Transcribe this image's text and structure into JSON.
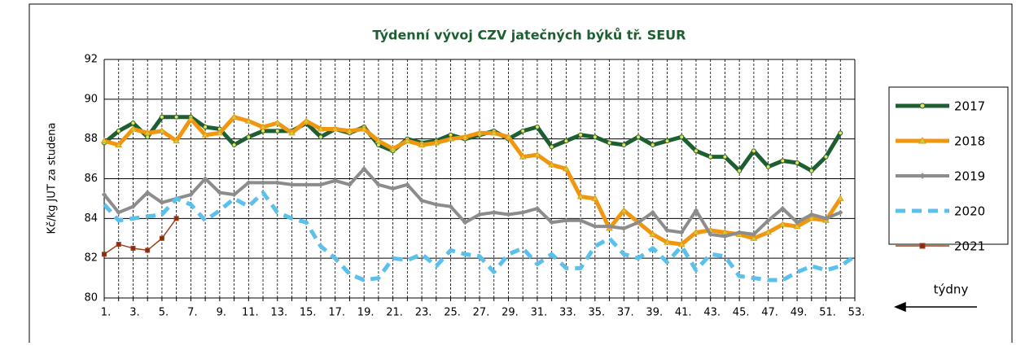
{
  "chart_data": {
    "type": "line",
    "title": "Týdenní vývoj CZV jatečných býků tř. SEUR",
    "y_label": "Kč/kg JUT za studena",
    "x_label": "týdny",
    "categories": [
      "1.",
      null,
      "3.",
      null,
      "5.",
      null,
      "7.",
      null,
      "9.",
      null,
      "11.",
      null,
      "13.",
      null,
      "15.",
      null,
      "17.",
      null,
      "19.",
      null,
      "21.",
      null,
      "23.",
      null,
      "25.",
      null,
      "27.",
      null,
      "29.",
      null,
      "31.",
      null,
      "33.",
      null,
      "35.",
      null,
      "37.",
      null,
      "39.",
      null,
      "41.",
      null,
      "43.",
      null,
      "45.",
      null,
      "47.",
      null,
      "49.",
      null,
      "51.",
      null,
      "53."
    ],
    "ylim": [
      80,
      92
    ],
    "yticks": [
      80,
      82,
      84,
      86,
      88,
      90,
      92
    ],
    "grid": true,
    "series": [
      {
        "name": "2017",
        "color": "#1e5f32",
        "marker": "circle",
        "marker_color": "#e8e060",
        "width": 5,
        "dashed": false,
        "values": [
          87.8,
          88.4,
          88.8,
          88.1,
          89.1,
          89.1,
          89.1,
          88.6,
          88.5,
          87.7,
          88.1,
          88.4,
          88.4,
          88.4,
          88.8,
          88.1,
          88.5,
          88.3,
          88.6,
          87.7,
          87.4,
          88.0,
          87.8,
          87.9,
          88.2,
          88.0,
          88.2,
          88.4,
          88.0,
          88.4,
          88.6,
          87.6,
          87.9,
          88.2,
          88.1,
          87.8,
          87.7,
          88.1,
          87.7,
          87.9,
          88.1,
          87.4,
          87.1,
          87.1,
          86.4,
          87.4,
          86.6,
          86.9,
          86.8,
          86.4,
          87.1,
          88.3,
          null
        ]
      },
      {
        "name": "2018",
        "color": "#f0960f",
        "marker": "triangle",
        "marker_color": "#c8d040",
        "width": 5,
        "dashed": false,
        "values": [
          87.9,
          87.7,
          88.5,
          88.3,
          88.4,
          87.9,
          89.0,
          88.2,
          88.3,
          89.1,
          88.9,
          88.6,
          88.8,
          88.3,
          88.9,
          88.5,
          88.5,
          88.4,
          88.5,
          87.9,
          87.5,
          87.9,
          87.7,
          87.8,
          88.0,
          88.1,
          88.3,
          88.3,
          88.1,
          87.1,
          87.2,
          86.7,
          86.5,
          85.1,
          85.0,
          83.5,
          84.4,
          83.8,
          83.2,
          82.8,
          82.7,
          83.3,
          83.4,
          83.3,
          83.2,
          83.0,
          83.3,
          83.7,
          83.6,
          84.0,
          83.9,
          85.0,
          null
        ]
      },
      {
        "name": "2019",
        "color": "#8c8c8c",
        "marker": "diamond",
        "marker_color": "#8c8c8c",
        "width": 4,
        "dashed": false,
        "values": [
          85.2,
          84.3,
          84.6,
          85.3,
          84.8,
          85.0,
          85.2,
          86.0,
          85.3,
          85.2,
          85.8,
          85.8,
          85.8,
          85.7,
          85.7,
          85.7,
          85.9,
          85.7,
          86.5,
          85.7,
          85.5,
          85.7,
          84.9,
          84.7,
          84.6,
          83.8,
          84.2,
          84.3,
          84.2,
          84.3,
          84.5,
          83.8,
          83.9,
          83.9,
          83.6,
          83.6,
          83.5,
          83.8,
          84.3,
          83.4,
          83.3,
          84.4,
          83.2,
          83.1,
          83.3,
          83.2,
          83.9,
          84.5,
          83.8,
          84.2,
          84.0,
          84.3,
          null
        ]
      },
      {
        "name": "2020",
        "color": "#5bc0eb",
        "marker": null,
        "marker_color": null,
        "width": 5,
        "dashed": true,
        "values": [
          84.7,
          83.9,
          84.0,
          84.1,
          84.2,
          85.0,
          84.7,
          83.9,
          84.4,
          85.0,
          84.6,
          85.3,
          84.3,
          84.0,
          83.8,
          82.6,
          82.0,
          81.2,
          80.9,
          81.0,
          82.0,
          81.9,
          82.2,
          81.6,
          82.4,
          82.2,
          82.1,
          81.3,
          82.2,
          82.5,
          81.7,
          82.2,
          81.5,
          81.5,
          82.6,
          83.0,
          82.2,
          82.0,
          82.5,
          81.8,
          82.6,
          81.4,
          82.2,
          82.1,
          81.1,
          81.0,
          80.9,
          80.9,
          81.3,
          81.6,
          81.4,
          81.6,
          82.1
        ]
      },
      {
        "name": "2021",
        "color": "#a0401a",
        "marker": "square",
        "marker_color": "#8b2a10",
        "width": 1.5,
        "dashed": false,
        "values": [
          82.2,
          82.7,
          82.5,
          82.4,
          83.0,
          84.0,
          null,
          null,
          null,
          null,
          null,
          null,
          null,
          null,
          null,
          null,
          null,
          null,
          null,
          null,
          null,
          null,
          null,
          null,
          null,
          null,
          null,
          null,
          null,
          null,
          null,
          null,
          null,
          null,
          null,
          null,
          null,
          null,
          null,
          null,
          null,
          null,
          null,
          null,
          null,
          null,
          null,
          null,
          null,
          null,
          null,
          null,
          null
        ]
      }
    ]
  }
}
